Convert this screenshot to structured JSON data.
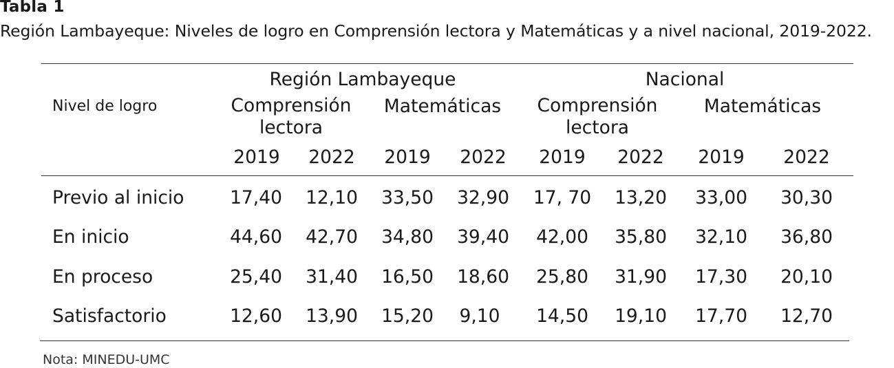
{
  "table_label": "Tabla 1",
  "table_title": "Región Lambayeque: Niveles de logro en Comprensión lectora y Matemáticas y a nivel nacional, 2019-2022.",
  "header": {
    "row_header": "Nivel de logro",
    "groups": [
      "Región Lambayeque",
      "Nacional"
    ],
    "subjects": [
      "Comprensión lectora",
      "Matemáticas",
      "Comprensión lectora",
      "Matemáticas"
    ],
    "subject_lines": [
      [
        "Comprensión",
        "lectora"
      ],
      [
        "Matemáticas"
      ],
      [
        "Comprensión",
        "lectora"
      ],
      [
        "Matemáticas"
      ]
    ],
    "years": [
      "2019",
      "2022",
      "2019",
      "2022",
      "2019",
      "2022",
      "2019",
      "2022"
    ]
  },
  "rows": [
    {
      "label": "Previo al inicio",
      "values": [
        "17,40",
        "12,10",
        "33,50",
        "32,90",
        "17, 70",
        "13,20",
        "33,00",
        "30,30"
      ]
    },
    {
      "label": "En inicio",
      "values": [
        "44,60",
        "42,70",
        "34,80",
        "39,40",
        "42,00",
        "35,80",
        "32,10",
        "36,80"
      ]
    },
    {
      "label": "En proceso",
      "values": [
        "25,40",
        "31,40",
        "16,50",
        "18,60",
        "25,80",
        "31,90",
        "17,30",
        "20,10"
      ]
    },
    {
      "label": "Satisfactorio",
      "values": [
        "12,60",
        "13,90",
        "15,20",
        "9,10",
        "14,50",
        "19,10",
        "17,70",
        "12,70"
      ]
    }
  ],
  "note": "Nota: MINEDU-UMC"
}
